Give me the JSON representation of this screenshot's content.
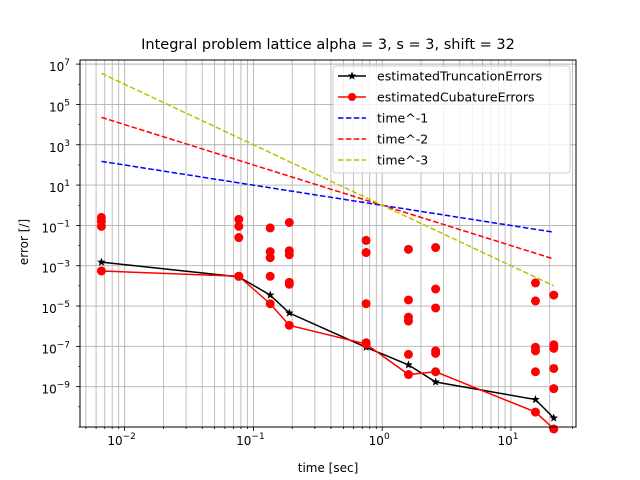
{
  "chart_data": {
    "type": "scatter",
    "title": "Integral problem lattice alpha = 3, s = 3, shift = 32",
    "xlabel": "time [sec]",
    "ylabel": "error [/]",
    "xscale": "log",
    "yscale": "log",
    "xlim": [
      0.0045,
      32
    ],
    "ylim": [
      1e-11,
      16000000.0
    ],
    "grid": "major and minor",
    "legend_position": "top-right",
    "xticks": [
      {
        "value": 0.01,
        "label": "10^-2"
      },
      {
        "value": 0.1,
        "label": "10^-1"
      },
      {
        "value": 1,
        "label": "10^0"
      },
      {
        "value": 10,
        "label": "10^1"
      }
    ],
    "yticks": [
      {
        "value": 1e-09,
        "label": "10^-9"
      },
      {
        "value": 1e-07,
        "label": "10^-7"
      },
      {
        "value": 1e-05,
        "label": "10^-5"
      },
      {
        "value": 0.001,
        "label": "10^-3"
      },
      {
        "value": 0.1,
        "label": "10^-1"
      },
      {
        "value": 10,
        "label": "10^1"
      },
      {
        "value": 1000.0,
        "label": "10^3"
      },
      {
        "value": 100000.0,
        "label": "10^5"
      },
      {
        "value": 10000000.0,
        "label": "10^7"
      }
    ],
    "series": [
      {
        "name": "estimatedTruncationErrors",
        "kind": "line-marker",
        "color": "#000000",
        "marker": "star",
        "x": [
          0.0066,
          0.077,
          0.135,
          0.19,
          0.75,
          1.6,
          2.6,
          15.5,
          21.5
        ],
        "y": [
          0.0015,
          0.00028,
          3.5e-05,
          4.5e-06,
          9e-08,
          1.2e-08,
          1.7e-09,
          2.3e-10,
          2.8e-11
        ]
      },
      {
        "name": "estimatedCubatureErrors",
        "kind": "line-marker",
        "color": "#ff0000",
        "marker": "circle",
        "x": [
          0.0066,
          0.077,
          0.135,
          0.19,
          0.75,
          1.6,
          2.6,
          15.5,
          21.5
        ],
        "y": [
          0.00055,
          0.0003,
          1.3e-05,
          1.1e-06,
          1.3e-07,
          4e-09,
          5.5e-09,
          5.5e-11,
          8e-12
        ]
      },
      {
        "name": "time^-1",
        "kind": "dashed",
        "color": "#0000ff",
        "x": [
          0.0066,
          21.5
        ],
        "y": [
          150,
          0.046
        ]
      },
      {
        "name": "time^-2",
        "kind": "dashed",
        "color": "#ff0000",
        "x": [
          0.0066,
          21.5
        ],
        "y": [
          22900,
          0.00216
        ]
      },
      {
        "name": "time^-3",
        "kind": "dashed",
        "color": "#bfbf00",
        "x": [
          0.0066,
          21.5
        ],
        "y": [
          3480000,
          0.000101
        ]
      }
    ],
    "extra_points": {
      "color": "#ff0000",
      "marker": "circle",
      "points": [
        [
          0.0066,
          0.25
        ],
        [
          0.0066,
          0.16
        ],
        [
          0.0066,
          0.09
        ],
        [
          0.077,
          0.2
        ],
        [
          0.077,
          0.09
        ],
        [
          0.077,
          0.025
        ],
        [
          0.077,
          0.0003
        ],
        [
          0.135,
          0.075
        ],
        [
          0.135,
          0.005
        ],
        [
          0.135,
          0.0025
        ],
        [
          0.135,
          0.0003
        ],
        [
          0.19,
          0.14
        ],
        [
          0.19,
          0.0055
        ],
        [
          0.19,
          0.0035
        ],
        [
          0.19,
          0.00015
        ],
        [
          0.19,
          0.00012
        ],
        [
          0.75,
          0.018
        ],
        [
          0.75,
          0.0045
        ],
        [
          0.75,
          1.3e-05
        ],
        [
          0.75,
          1.5e-07
        ],
        [
          1.6,
          0.0065
        ],
        [
          1.6,
          2e-05
        ],
        [
          1.6,
          2.8e-06
        ],
        [
          1.6,
          1.8e-06
        ],
        [
          1.6,
          4e-08
        ],
        [
          2.6,
          0.008
        ],
        [
          2.6,
          7e-05
        ],
        [
          2.6,
          8e-06
        ],
        [
          2.6,
          6e-08
        ],
        [
          2.6,
          4.5e-08
        ],
        [
          15.5,
          0.00014
        ],
        [
          15.5,
          1.8e-05
        ],
        [
          15.5,
          9e-08
        ],
        [
          15.5,
          6e-08
        ],
        [
          15.5,
          5.5e-09
        ],
        [
          21.5,
          3.5e-05
        ],
        [
          21.5,
          1.2e-07
        ],
        [
          21.5,
          8e-08
        ],
        [
          21.5,
          8e-09
        ],
        [
          21.5,
          8e-10
        ]
      ]
    }
  }
}
